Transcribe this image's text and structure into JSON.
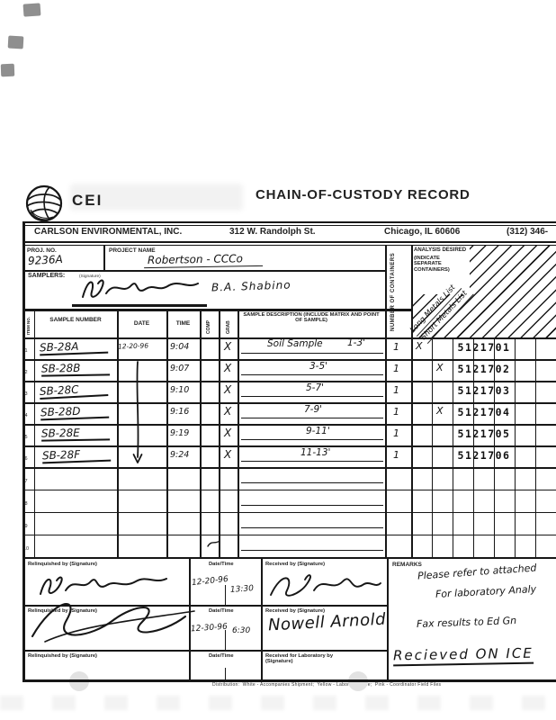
{
  "header": {
    "logo": "CEI",
    "title": "CHAIN-OF-CUSTODY RECORD",
    "company": "CARLSON ENVIRONMENTAL, INC.",
    "address": "312 W. Randolph St.",
    "city": "Chicago, IL 60606",
    "phone": "(312) 346-"
  },
  "project": {
    "proj_no_label": "PROJ. NO.",
    "proj_no": "9236A",
    "name_label": "PROJECT NAME",
    "name": "Robertson - CCCo",
    "samplers_label": "SAMPLERS:",
    "signature_note": "(Signature)",
    "sampler_name": "B.A. Shabino"
  },
  "analysis": {
    "containers_label": "NUMBER OF CONTAINERS",
    "desired_label": "ANALYSIS DESIRED",
    "desired_note": "(INDICATE SEPARATE CONTAINERS)",
    "col1": "Long Metals List",
    "col2": "Short Metals List"
  },
  "table": {
    "item_label": "ITEM NO.",
    "sample_label": "SAMPLE NUMBER",
    "date_label": "DATE",
    "time_label": "TIME",
    "comp_label": "COMP",
    "grab_label": "GRAB",
    "desc_label": "SAMPLE DESCRIPTION (INCLUDE MATRIX AND POINT OF SAMPLE)",
    "rows": [
      {
        "item": "1",
        "sample": "SB-28A",
        "date": "12-20-96",
        "time": "9:04",
        "grab": "X",
        "desc": "Soil Sample",
        "depth": "1-3'",
        "containers": "1",
        "a1": "X",
        "a2": "",
        "lab": "5121701"
      },
      {
        "item": "2",
        "sample": "SB-28B",
        "date": "",
        "time": "9:07",
        "grab": "X",
        "desc": "",
        "depth": "3-5'",
        "containers": "1",
        "a1": "",
        "a2": "X",
        "lab": "5121702"
      },
      {
        "item": "3",
        "sample": "SB-28C",
        "date": "",
        "time": "9:10",
        "grab": "X",
        "desc": "",
        "depth": "5-7'",
        "containers": "1",
        "a1": "",
        "a2": "",
        "lab": "5121703"
      },
      {
        "item": "4",
        "sample": "SB-28D",
        "date": "",
        "time": "9:16",
        "grab": "X",
        "desc": "",
        "depth": "7-9'",
        "containers": "1",
        "a1": "",
        "a2": "X",
        "lab": "5121704"
      },
      {
        "item": "5",
        "sample": "SB-28E",
        "date": "",
        "time": "9:19",
        "grab": "X",
        "desc": "",
        "depth": "9-11'",
        "containers": "1",
        "a1": "",
        "a2": "",
        "lab": "5121705"
      },
      {
        "item": "6",
        "sample": "SB-28F",
        "date": "",
        "time": "9:24",
        "grab": "X",
        "desc": "",
        "depth": "11-13'",
        "containers": "1",
        "a1": "",
        "a2": "",
        "lab": "5121706"
      },
      {
        "item": "7"
      },
      {
        "item": "8"
      },
      {
        "item": "9"
      },
      {
        "item": "10"
      }
    ]
  },
  "footer": {
    "relinquished_label": "Relinquished by (Signature)",
    "datetime_label": "Date/Time",
    "received_label": "Received by (Signature)",
    "received_lab_label": "Received for Laboratory by (Signature)",
    "sign1_date": "12-20-96",
    "sign1_time": "13:30",
    "sign2_date": "12-30-96",
    "sign2_time": "6:30",
    "received2_name": "Nowell Arnold",
    "remarks_label": "REMARKS",
    "remark1": "Please refer to attached",
    "remark2": "For laboratory Analy",
    "remark3": "Fax results to Ed Gn",
    "remark4": "Recieved ON ICE"
  },
  "distribution": "Distribution:  White - Accompanies Shipment;  Yellow - Laboratory File;  Pink - Coordinator Field Files"
}
